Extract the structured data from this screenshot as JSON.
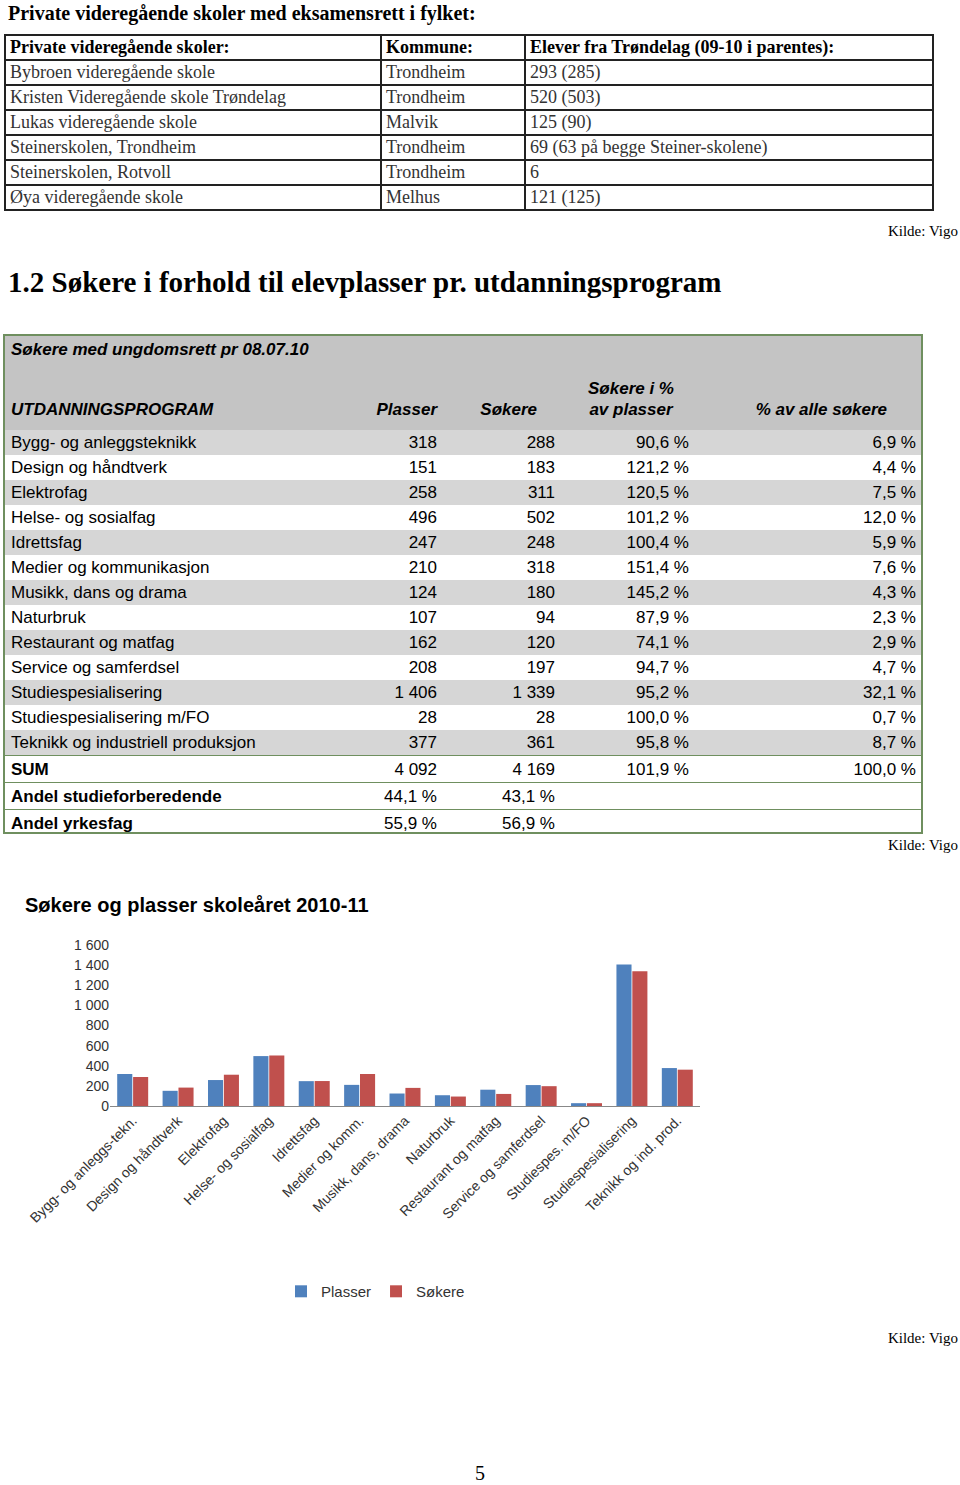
{
  "header": {
    "title": "Private videregående skoler med eksamensrett i fylket:"
  },
  "schools_table": {
    "columns": [
      "Private videregående skoler:",
      "Kommune:",
      "Elever fra Trøndelag (09-10 i parentes):"
    ],
    "rows": [
      [
        "Bybroen videregående skole",
        "Trondheim",
        "293 (285)"
      ],
      [
        "Kristen Videregående skole Trøndelag",
        "Trondheim",
        "520 (503)"
      ],
      [
        "Lukas videregående skole",
        "Malvik",
        "125 (90)"
      ],
      [
        "Steinerskolen, Trondheim",
        "Trondheim",
        "69 (63 på begge Steiner-skolene)"
      ],
      [
        "Steinerskolen, Rotvoll",
        "Trondheim",
        "6"
      ],
      [
        "Øya videregående skole",
        "Melhus",
        "121 (125)"
      ]
    ],
    "source": "Kilde: Vigo"
  },
  "section": {
    "title": "1.2 Søkere i forhold til elevplasser pr. utdanningsprogram"
  },
  "applicants_table": {
    "caption": "Søkere med ungdomsrett pr 08.07.10",
    "columns": [
      [
        "UTDANNINGSPROGRAM"
      ],
      [
        "Plasser"
      ],
      [
        "Søkere"
      ],
      [
        "Søkere i %",
        "av plasser"
      ],
      [
        "% av alle søkere"
      ]
    ],
    "rows": [
      [
        "Bygg- og anleggsteknikk",
        "318",
        "288",
        "90,6 %",
        "6,9 %"
      ],
      [
        "Design og håndtverk",
        "151",
        "183",
        "121,2 %",
        "4,4 %"
      ],
      [
        "Elektrofag",
        "258",
        "311",
        "120,5 %",
        "7,5 %"
      ],
      [
        "Helse- og sosialfag",
        "496",
        "502",
        "101,2 %",
        "12,0 %"
      ],
      [
        "Idrettsfag",
        "247",
        "248",
        "100,4 %",
        "5,9 %"
      ],
      [
        "Medier og kommunikasjon",
        "210",
        "318",
        "151,4 %",
        "7,6 %"
      ],
      [
        "Musikk, dans og drama",
        "124",
        "180",
        "145,2 %",
        "4,3 %"
      ],
      [
        "Naturbruk",
        "107",
        "94",
        "87,9 %",
        "2,3 %"
      ],
      [
        "Restaurant og matfag",
        "162",
        "120",
        "74,1 %",
        "2,9 %"
      ],
      [
        "Service og samferdsel",
        "208",
        "197",
        "94,7 %",
        "4,7 %"
      ],
      [
        "Studiespesialisering",
        "1 406",
        "1 339",
        "95,2 %",
        "32,1 %"
      ],
      [
        "Studiespesialisering m/FO",
        "28",
        "28",
        "100,0 %",
        "0,7 %"
      ],
      [
        "Teknikk og industriell produksjon",
        "377",
        "361",
        "95,8 %",
        "8,7 %"
      ]
    ],
    "summary_rows": [
      [
        "SUM",
        "4 092",
        "4 169",
        "101,9 %",
        "100,0 %"
      ],
      [
        "Andel studieforberedende",
        "44,1 %",
        "43,1 %"
      ],
      [
        "Andel yrkesfag",
        "55,9 %",
        "56,9 %"
      ]
    ],
    "source": "Kilde: Vigo"
  },
  "chart_data": {
    "type": "bar",
    "title": "Søkere og plasser skoleåret 2010-11",
    "categories": [
      "Bygg- og anleggs-tekn.",
      "Design og håndtverk",
      "Elektrofag",
      "Helse- og sosialfag",
      "Idrettsfag",
      "Medier og komm.",
      "Musikk, dans, drama",
      "Naturbruk",
      "Restaurant og matfag",
      "Service og samferdsel",
      "Studiespes. m/FO",
      "Studiespesialisering",
      "Teknikk og ind. prod."
    ],
    "series": [
      {
        "name": "Plasser",
        "color": "#4f81bd",
        "values": [
          318,
          151,
          258,
          496,
          247,
          210,
          124,
          107,
          162,
          208,
          28,
          1406,
          377
        ]
      },
      {
        "name": "Søkere",
        "color": "#c0504d",
        "values": [
          288,
          183,
          311,
          502,
          248,
          318,
          180,
          94,
          120,
          197,
          28,
          1339,
          361
        ]
      }
    ],
    "ylim": [
      0,
      1600
    ],
    "yticks": [
      0,
      200,
      400,
      600,
      800,
      {
        "value": 1000,
        "label": "1 000"
      },
      {
        "value": 1200,
        "label": "1 200"
      },
      {
        "value": 1400,
        "label": "1 400"
      },
      {
        "value": 1600,
        "label": "1 600"
      }
    ],
    "grid": false,
    "legend": "bottom"
  },
  "chart_source": "Kilde: Vigo",
  "page_number": "5"
}
